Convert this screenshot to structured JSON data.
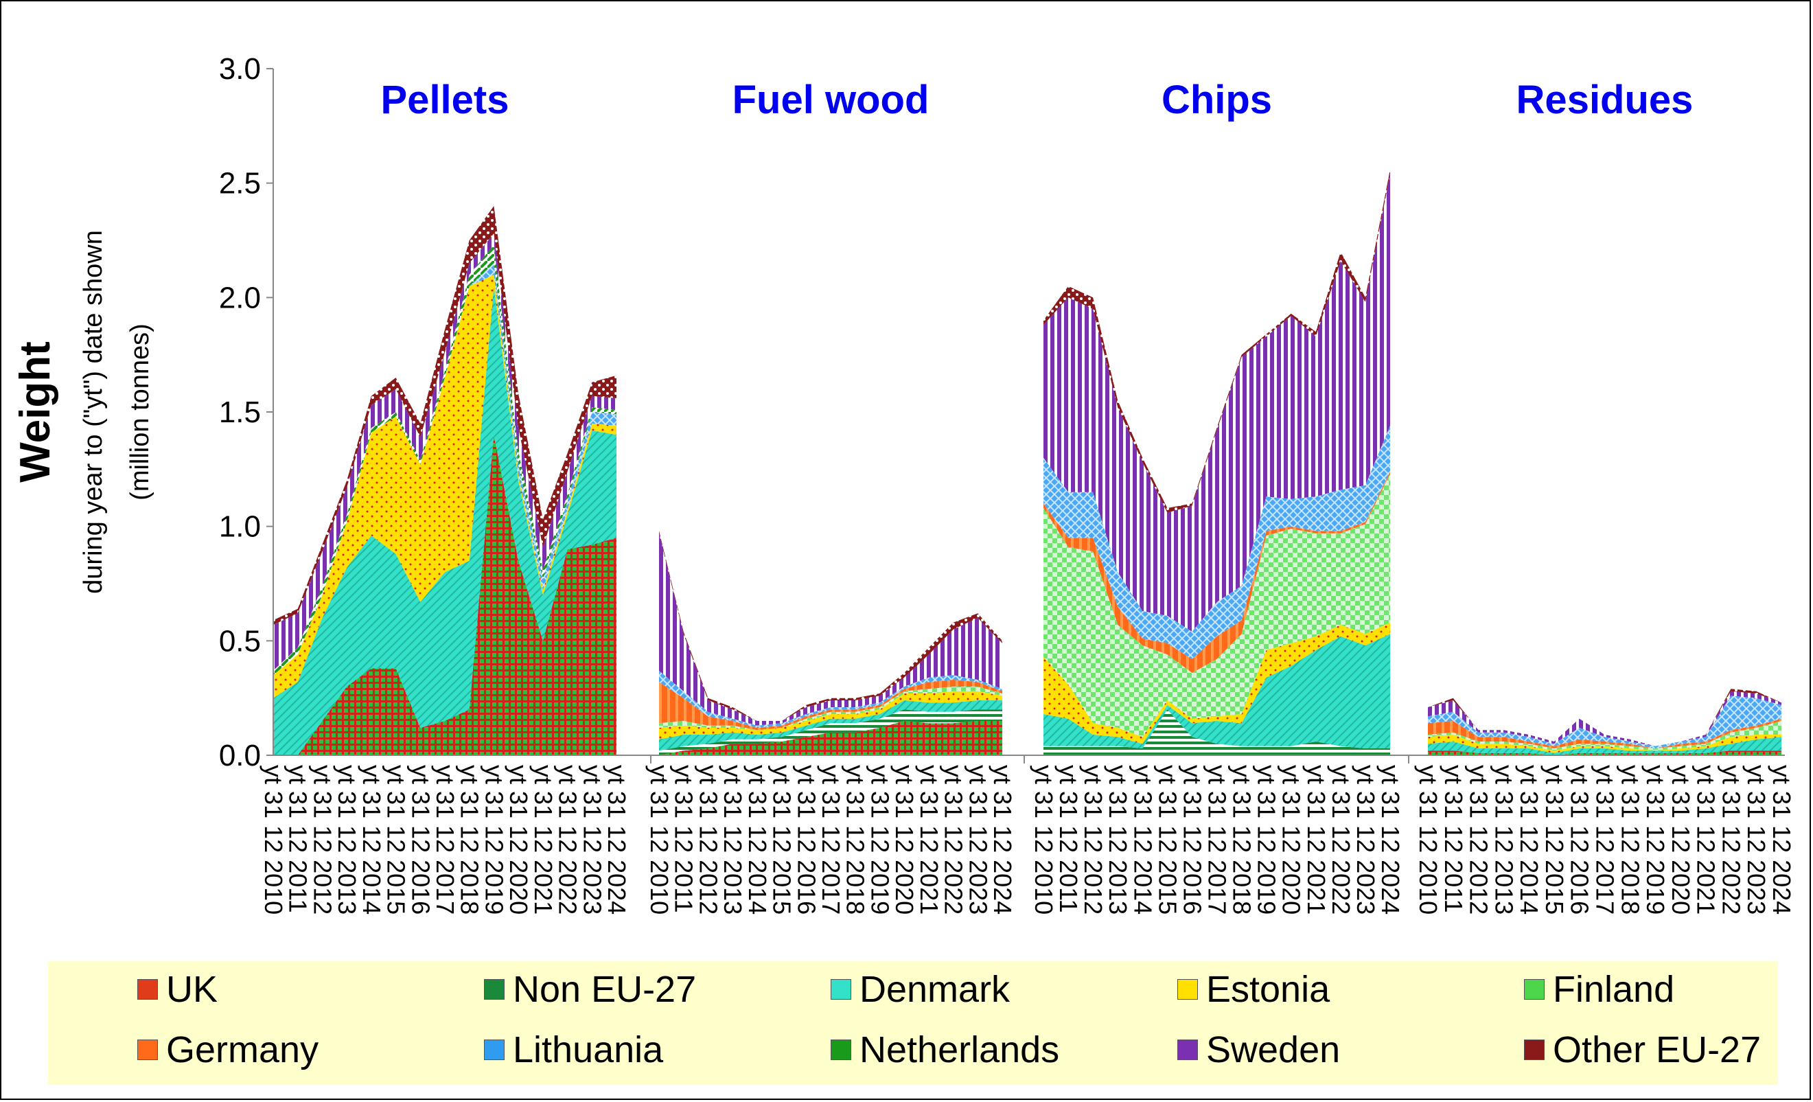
{
  "chart_data": {
    "type": "area",
    "stacked": true,
    "ylabel": "Weight",
    "ylabel_sub1": "during year to (\"yt\") date shown",
    "ylabel_sub2": "(million tonnes)",
    "ylim": [
      0,
      3.0
    ],
    "yticks": [
      "0.0",
      "0.5",
      "1.0",
      "1.5",
      "2.0",
      "2.5",
      "3.0"
    ],
    "grid": false,
    "legend_position": "bottom",
    "date_labels": [
      "yt 31 12 2010",
      "yt 31 12 2011",
      "yt 31 12 2012",
      "yt 31 12 2013",
      "yt 31 12 2014",
      "yt 31 12 2015",
      "yt 31 12 2016",
      "yt 31 12 2017",
      "yt 31 12 2018",
      "yt 31 12 2019",
      "yt 31 12 2020",
      "yt 31 12 2021",
      "yt 31 12 2022",
      "yt 31 12 2023",
      "yt 31 12 2024"
    ],
    "series_names": [
      "UK",
      "Non EU-27",
      "Denmark",
      "Estonia",
      "Finland",
      "Germany",
      "Lithuania",
      "Netherlands",
      "Sweden",
      "Other EU-27"
    ],
    "series_colors": [
      "#e03c1c",
      "#1a8a3a",
      "#33e0c8",
      "#ffe000",
      "#4cd64c",
      "#ff6a1a",
      "#2f9cf0",
      "#1a9a1a",
      "#7a30b0",
      "#8a1a1a"
    ],
    "panels": [
      {
        "title": "Pellets",
        "series": [
          {
            "name": "UK",
            "values": [
              0.0,
              0.0,
              0.15,
              0.3,
              0.38,
              0.38,
              0.12,
              0.15,
              0.2,
              1.4,
              0.85,
              0.5,
              0.9,
              0.92,
              0.95
            ]
          },
          {
            "name": "Non EU-27",
            "values": [
              0.0,
              0.0,
              0.0,
              0.0,
              0.0,
              0.0,
              0.0,
              0.0,
              0.0,
              0.0,
              0.0,
              0.0,
              0.0,
              0.0,
              0.0
            ]
          },
          {
            "name": "Denmark",
            "values": [
              0.25,
              0.32,
              0.45,
              0.52,
              0.58,
              0.5,
              0.55,
              0.65,
              0.65,
              0.65,
              0.35,
              0.2,
              0.15,
              0.5,
              0.45
            ]
          },
          {
            "name": "Estonia",
            "values": [
              0.1,
              0.12,
              0.1,
              0.2,
              0.45,
              0.6,
              0.6,
              0.85,
              1.2,
              0.05,
              0.02,
              0.02,
              0.02,
              0.03,
              0.04
            ]
          },
          {
            "name": "Finland",
            "values": [
              0.0,
              0.0,
              0.0,
              0.0,
              0.0,
              0.0,
              0.0,
              0.0,
              0.0,
              0.0,
              0.0,
              0.0,
              0.0,
              0.0,
              0.0
            ]
          },
          {
            "name": "Germany",
            "values": [
              0.0,
              0.0,
              0.0,
              0.0,
              0.0,
              0.0,
              0.0,
              0.0,
              0.0,
              0.0,
              0.0,
              0.0,
              0.0,
              0.0,
              0.0
            ]
          },
          {
            "name": "Lithuania",
            "values": [
              0.0,
              0.0,
              0.0,
              0.0,
              0.0,
              0.0,
              0.0,
              0.0,
              0.0,
              0.05,
              0.05,
              0.05,
              0.04,
              0.05,
              0.05
            ]
          },
          {
            "name": "Netherlands",
            "values": [
              0.02,
              0.03,
              0.04,
              0.03,
              0.02,
              0.02,
              0.02,
              0.03,
              0.05,
              0.08,
              0.06,
              0.04,
              0.03,
              0.02,
              0.02
            ]
          },
          {
            "name": "Sweden",
            "values": [
              0.2,
              0.15,
              0.15,
              0.12,
              0.1,
              0.1,
              0.1,
              0.08,
              0.05,
              0.05,
              0.1,
              0.1,
              0.1,
              0.05,
              0.05
            ]
          },
          {
            "name": "Other EU-27",
            "values": [
              0.02,
              0.02,
              0.03,
              0.03,
              0.04,
              0.05,
              0.06,
              0.1,
              0.1,
              0.12,
              0.15,
              0.12,
              0.08,
              0.06,
              0.1
            ]
          }
        ]
      },
      {
        "title": "Fuel wood",
        "series": [
          {
            "name": "UK",
            "values": [
              0.0,
              0.02,
              0.03,
              0.05,
              0.05,
              0.06,
              0.08,
              0.1,
              0.1,
              0.12,
              0.15,
              0.14,
              0.14,
              0.15,
              0.15
            ]
          },
          {
            "name": "Non EU-27",
            "values": [
              0.02,
              0.02,
              0.02,
              0.02,
              0.02,
              0.02,
              0.03,
              0.04,
              0.04,
              0.04,
              0.05,
              0.05,
              0.05,
              0.05,
              0.05
            ]
          },
          {
            "name": "Denmark",
            "values": [
              0.05,
              0.05,
              0.04,
              0.03,
              0.02,
              0.02,
              0.02,
              0.02,
              0.02,
              0.02,
              0.04,
              0.04,
              0.04,
              0.04,
              0.04
            ]
          },
          {
            "name": "Estonia",
            "values": [
              0.05,
              0.04,
              0.03,
              0.02,
              0.02,
              0.02,
              0.02,
              0.02,
              0.02,
              0.02,
              0.03,
              0.04,
              0.05,
              0.04,
              0.02
            ]
          },
          {
            "name": "Finland",
            "values": [
              0.02,
              0.02,
              0.01,
              0.01,
              0.0,
              0.0,
              0.01,
              0.01,
              0.01,
              0.01,
              0.01,
              0.02,
              0.02,
              0.02,
              0.01
            ]
          },
          {
            "name": "Germany",
            "values": [
              0.18,
              0.1,
              0.04,
              0.02,
              0.01,
              0.01,
              0.01,
              0.01,
              0.01,
              0.01,
              0.01,
              0.03,
              0.03,
              0.02,
              0.01
            ]
          },
          {
            "name": "Lithuania",
            "values": [
              0.05,
              0.03,
              0.02,
              0.01,
              0.01,
              0.01,
              0.01,
              0.01,
              0.01,
              0.01,
              0.01,
              0.02,
              0.02,
              0.01,
              0.01
            ]
          },
          {
            "name": "Netherlands",
            "values": [
              0.0,
              0.0,
              0.0,
              0.0,
              0.0,
              0.0,
              0.0,
              0.0,
              0.0,
              0.0,
              0.0,
              0.0,
              0.0,
              0.0,
              0.0
            ]
          },
          {
            "name": "Sweden",
            "values": [
              0.6,
              0.25,
              0.05,
              0.04,
              0.02,
              0.01,
              0.03,
              0.03,
              0.03,
              0.03,
              0.04,
              0.1,
              0.2,
              0.27,
              0.2
            ]
          },
          {
            "name": "Other EU-27",
            "values": [
              0.01,
              0.01,
              0.01,
              0.01,
              0.0,
              0.0,
              0.01,
              0.01,
              0.01,
              0.01,
              0.02,
              0.03,
              0.03,
              0.02,
              0.01
            ]
          }
        ]
      },
      {
        "title": "Chips",
        "series": [
          {
            "name": "UK",
            "values": [
              0.0,
              0.0,
              0.0,
              0.0,
              0.0,
              0.0,
              0.0,
              0.0,
              0.0,
              0.0,
              0.0,
              0.0,
              0.0,
              0.0,
              0.0
            ]
          },
          {
            "name": "Non EU-27",
            "values": [
              0.04,
              0.04,
              0.04,
              0.04,
              0.03,
              0.2,
              0.08,
              0.05,
              0.04,
              0.04,
              0.04,
              0.06,
              0.04,
              0.03,
              0.03
            ]
          },
          {
            "name": "Denmark",
            "values": [
              0.14,
              0.12,
              0.05,
              0.04,
              0.02,
              0.02,
              0.06,
              0.1,
              0.1,
              0.3,
              0.35,
              0.4,
              0.48,
              0.45,
              0.5
            ]
          },
          {
            "name": "Estonia",
            "values": [
              0.25,
              0.15,
              0.05,
              0.04,
              0.03,
              0.02,
              0.02,
              0.02,
              0.04,
              0.12,
              0.1,
              0.06,
              0.05,
              0.05,
              0.05
            ]
          },
          {
            "name": "Finland",
            "values": [
              0.65,
              0.6,
              0.75,
              0.45,
              0.4,
              0.2,
              0.2,
              0.25,
              0.35,
              0.5,
              0.5,
              0.45,
              0.4,
              0.48,
              0.65
            ]
          },
          {
            "name": "Germany",
            "values": [
              0.02,
              0.04,
              0.06,
              0.08,
              0.03,
              0.05,
              0.06,
              0.1,
              0.06,
              0.02,
              0.01,
              0.01,
              0.01,
              0.01,
              0.01
            ]
          },
          {
            "name": "Lithuania",
            "values": [
              0.2,
              0.2,
              0.2,
              0.15,
              0.12,
              0.12,
              0.12,
              0.15,
              0.15,
              0.15,
              0.12,
              0.15,
              0.18,
              0.16,
              0.2
            ]
          },
          {
            "name": "Netherlands",
            "values": [
              0.0,
              0.0,
              0.0,
              0.0,
              0.0,
              0.0,
              0.0,
              0.0,
              0.0,
              0.0,
              0.0,
              0.0,
              0.0,
              0.0,
              0.0
            ]
          },
          {
            "name": "Sweden",
            "values": [
              0.58,
              0.85,
              0.8,
              0.72,
              0.65,
              0.45,
              0.55,
              0.75,
              1.0,
              0.7,
              0.8,
              0.7,
              1.0,
              0.8,
              1.1
            ]
          },
          {
            "name": "Other EU-27",
            "values": [
              0.02,
              0.05,
              0.05,
              0.03,
              0.02,
              0.02,
              0.01,
              0.01,
              0.01,
              0.01,
              0.01,
              0.02,
              0.04,
              0.02,
              0.02
            ]
          }
        ]
      },
      {
        "title": "Residues",
        "series": [
          {
            "name": "UK",
            "values": [
              0.02,
              0.02,
              0.01,
              0.01,
              0.01,
              0.0,
              0.01,
              0.01,
              0.01,
              0.01,
              0.01,
              0.01,
              0.02,
              0.02,
              0.02
            ]
          },
          {
            "name": "Non EU-27",
            "values": [
              0.0,
              0.0,
              0.0,
              0.0,
              0.0,
              0.0,
              0.0,
              0.0,
              0.0,
              0.0,
              0.0,
              0.0,
              0.0,
              0.0,
              0.0
            ]
          },
          {
            "name": "Denmark",
            "values": [
              0.03,
              0.04,
              0.02,
              0.02,
              0.02,
              0.01,
              0.02,
              0.02,
              0.01,
              0.01,
              0.01,
              0.02,
              0.03,
              0.05,
              0.06
            ]
          },
          {
            "name": "Estonia",
            "values": [
              0.03,
              0.03,
              0.02,
              0.02,
              0.01,
              0.01,
              0.01,
              0.01,
              0.01,
              0.0,
              0.01,
              0.01,
              0.03,
              0.02,
              0.01
            ]
          },
          {
            "name": "Finland",
            "values": [
              0.01,
              0.01,
              0.01,
              0.01,
              0.01,
              0.01,
              0.01,
              0.01,
              0.01,
              0.01,
              0.01,
              0.01,
              0.02,
              0.03,
              0.06
            ]
          },
          {
            "name": "Germany",
            "values": [
              0.05,
              0.05,
              0.02,
              0.02,
              0.01,
              0.01,
              0.02,
              0.01,
              0.01,
              0.0,
              0.01,
              0.01,
              0.01,
              0.01,
              0.01
            ]
          },
          {
            "name": "Lithuania",
            "values": [
              0.03,
              0.04,
              0.02,
              0.02,
              0.02,
              0.01,
              0.05,
              0.02,
              0.01,
              0.01,
              0.01,
              0.02,
              0.15,
              0.12,
              0.06
            ]
          },
          {
            "name": "Netherlands",
            "values": [
              0.0,
              0.0,
              0.0,
              0.0,
              0.0,
              0.0,
              0.0,
              0.0,
              0.0,
              0.0,
              0.0,
              0.0,
              0.0,
              0.0,
              0.0
            ]
          },
          {
            "name": "Sweden",
            "values": [
              0.04,
              0.05,
              0.01,
              0.01,
              0.01,
              0.01,
              0.04,
              0.01,
              0.01,
              0.0,
              0.0,
              0.01,
              0.02,
              0.02,
              0.01
            ]
          },
          {
            "name": "Other EU-27",
            "values": [
              0.0,
              0.01,
              0.0,
              0.0,
              0.0,
              0.0,
              0.0,
              0.0,
              0.0,
              0.0,
              0.0,
              0.0,
              0.01,
              0.01,
              0.0
            ]
          }
        ]
      }
    ]
  }
}
